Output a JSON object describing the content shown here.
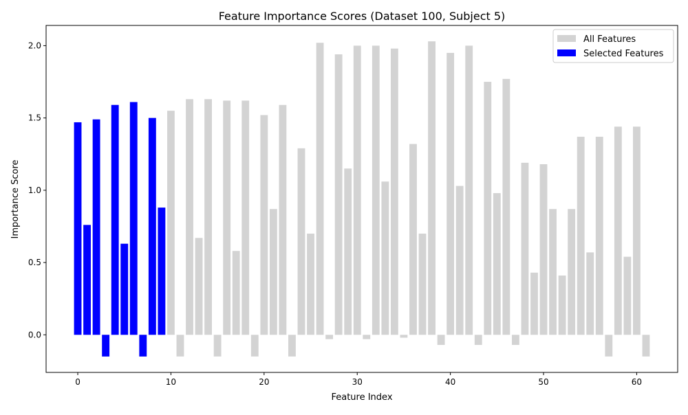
{
  "chart_data": {
    "type": "bar",
    "title": "Feature Importance Scores (Dataset 100, Subject 5)",
    "xlabel": "Feature Index",
    "ylabel": "Importance Score",
    "xlim": [
      -3.4,
      64.4
    ],
    "ylim": [
      -0.26,
      2.14
    ],
    "xticks": [
      0,
      10,
      20,
      30,
      40,
      50,
      60
    ],
    "yticks": [
      0.0,
      0.5,
      1.0,
      1.5,
      2.0
    ],
    "ytick_labels": [
      "0.0",
      "0.5",
      "1.0",
      "1.5",
      "2.0"
    ],
    "grid": false,
    "legend_position": "top-right",
    "series": [
      {
        "name": "All Features",
        "color": "#d3d3d3",
        "x": [
          0,
          1,
          2,
          3,
          4,
          5,
          6,
          7,
          8,
          9,
          10,
          11,
          12,
          13,
          14,
          15,
          16,
          17,
          18,
          19,
          20,
          21,
          22,
          23,
          24,
          25,
          26,
          27,
          28,
          29,
          30,
          31,
          32,
          33,
          34,
          35,
          36,
          37,
          38,
          39,
          40,
          41,
          42,
          43,
          44,
          45,
          46,
          47,
          48,
          49,
          50,
          51,
          52,
          53,
          54,
          55,
          56,
          57,
          58,
          59,
          60,
          61
        ],
        "values": [
          1.47,
          0.76,
          1.49,
          -0.15,
          1.59,
          0.63,
          1.61,
          -0.15,
          1.5,
          0.88,
          1.55,
          -0.15,
          1.63,
          0.67,
          1.63,
          -0.15,
          1.62,
          0.58,
          1.62,
          -0.15,
          1.52,
          0.87,
          1.59,
          -0.15,
          1.29,
          0.7,
          2.02,
          -0.03,
          1.94,
          1.15,
          2.0,
          -0.03,
          2.0,
          1.06,
          1.98,
          -0.02,
          1.32,
          0.7,
          2.03,
          -0.07,
          1.95,
          1.03,
          2.0,
          -0.07,
          1.75,
          0.98,
          1.77,
          -0.07,
          1.19,
          0.43,
          1.18,
          0.87,
          0.41,
          0.87,
          1.37,
          0.57,
          1.37,
          -0.15,
          1.44,
          0.54,
          1.44,
          -0.15
        ]
      },
      {
        "name": "Selected Features",
        "color": "#0000ff",
        "x": [
          0,
          1,
          2,
          3,
          4,
          5,
          6,
          7,
          8,
          9
        ],
        "values": [
          1.47,
          0.76,
          1.49,
          -0.15,
          1.59,
          0.63,
          1.61,
          -0.15,
          1.5,
          0.88
        ]
      }
    ]
  }
}
